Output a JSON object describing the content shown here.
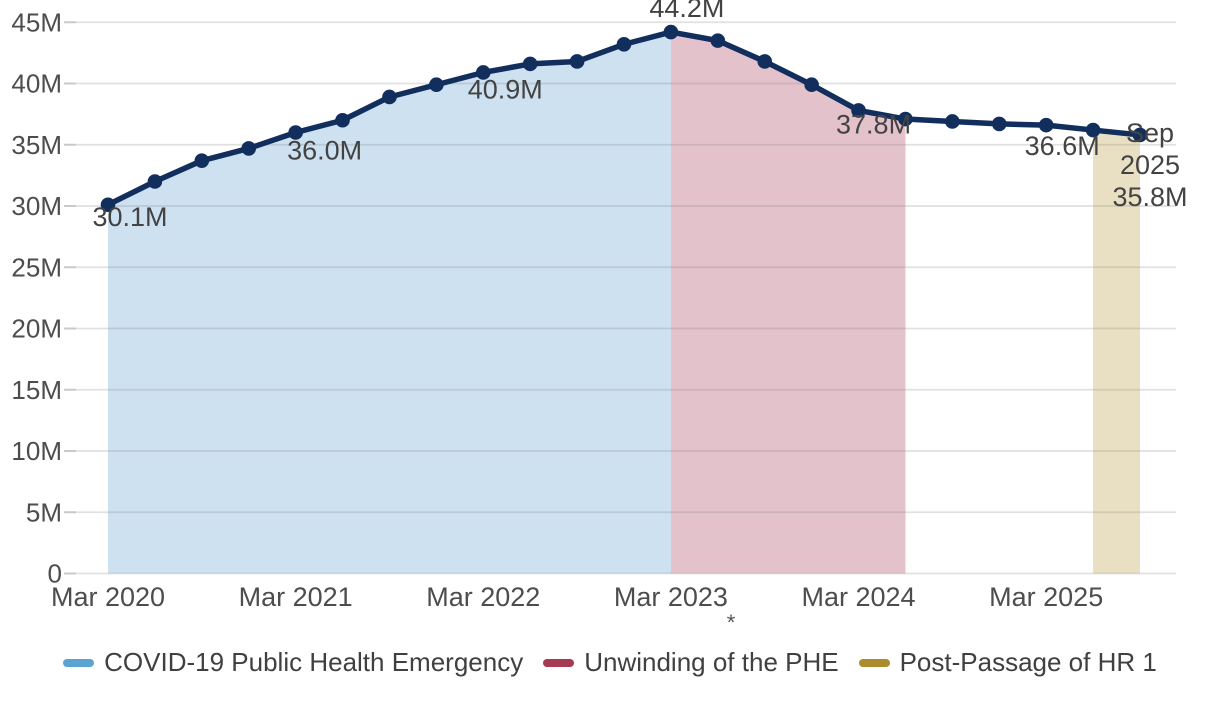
{
  "chart_data": {
    "type": "area",
    "title": "",
    "xlabel": "",
    "ylabel": "",
    "value_suffix": "M",
    "ylim": [
      0,
      45
    ],
    "ytick_step": 5,
    "grid": "horizontal",
    "x": [
      "Mar 2020",
      "Jun 2020",
      "Sep 2020",
      "Dec 2020",
      "Mar 2021",
      "Jun 2021",
      "Sep 2021",
      "Dec 2021",
      "Mar 2022",
      "Jun 2022",
      "Sep 2022",
      "Dec 2022",
      "Mar 2023",
      "Jun 2023",
      "Sep 2023",
      "Dec 2023",
      "Mar 2024",
      "Jun 2024",
      "Sep 2024",
      "Dec 2024",
      "Mar 2025",
      "Jun 2025",
      "Sep 2025"
    ],
    "values": [
      30.1,
      32.0,
      33.7,
      34.7,
      36.0,
      37.0,
      38.9,
      39.9,
      40.9,
      41.6,
      41.8,
      43.2,
      44.2,
      43.5,
      41.8,
      39.9,
      37.8,
      37.1,
      36.9,
      36.7,
      36.6,
      36.2,
      35.8
    ],
    "yticks": [
      "0",
      "5M",
      "10M",
      "15M",
      "20M",
      "25M",
      "30M",
      "35M",
      "40M",
      "45M"
    ],
    "xticks": [
      {
        "index": 0,
        "label": "Mar 2020"
      },
      {
        "index": 4,
        "label": "Mar 2021"
      },
      {
        "index": 8,
        "label": "Mar 2022"
      },
      {
        "index": 12,
        "label": "Mar 2023"
      },
      {
        "index": 16,
        "label": "Mar 2024"
      },
      {
        "index": 20,
        "label": "Mar 2025"
      }
    ],
    "regions": [
      {
        "label": "COVID-19 Public Health Emergency",
        "from": "Mar 2020",
        "to": "Mar 2023",
        "from_index": 0,
        "to_index": 12,
        "fill": "#cde1f1",
        "legend_color": "#5ba3d2"
      },
      {
        "label": "Unwinding of the PHE",
        "from": "Mar 2023",
        "to": "Jun 2024",
        "from_index": 12,
        "to_index": 17,
        "fill": "#e3c2cc",
        "legend_color": "#a63a50"
      },
      {
        "label": "Post-Passage of HR 1",
        "from": "Jun 2025",
        "to": "Sep 2025",
        "from_index": 21,
        "to_index": 22,
        "fill": "#e9e0c4",
        "legend_color": "#ab8c2d"
      }
    ],
    "point_labels": [
      {
        "index": 0,
        "text": "30.1M"
      },
      {
        "index": 4,
        "text": "36.0M"
      },
      {
        "index": 8,
        "text": "40.9M"
      },
      {
        "index": 12,
        "text": "44.2M"
      },
      {
        "index": 16,
        "text": "37.8M"
      },
      {
        "index": 20,
        "text": "36.6M"
      }
    ],
    "end_label": {
      "index": 22,
      "lines": [
        "Sep",
        "2025",
        "35.8M"
      ]
    },
    "footnote_marker": "*",
    "line_color": "#112e5d"
  },
  "colors": {
    "gridline": "#e3e3e3",
    "tick": "#c9c9c9",
    "axis_text": "#4d4d4d",
    "annotation_text": "#434343",
    "legend_text": "#404040"
  }
}
